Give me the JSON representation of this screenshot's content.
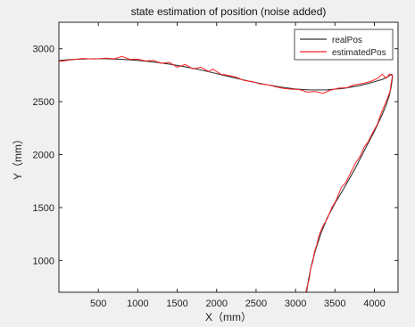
{
  "chart_data": {
    "type": "line",
    "title": "state estimation of position (noise added)",
    "xlabel": "X（mm）",
    "ylabel": "Y（mm）",
    "xlim": [
      0,
      4300
    ],
    "ylim": [
      700,
      3250
    ],
    "xticks": [
      500,
      1000,
      1500,
      2000,
      2500,
      3000,
      3500,
      4000
    ],
    "yticks": [
      1000,
      1500,
      2000,
      2500,
      3000
    ],
    "grid": false,
    "legend_position": "top-right",
    "series": [
      {
        "name": "realPos",
        "color": "#333333",
        "points": [
          [
            0,
            2890
          ],
          [
            200,
            2900
          ],
          [
            400,
            2905
          ],
          [
            600,
            2905
          ],
          [
            800,
            2900
          ],
          [
            1000,
            2890
          ],
          [
            1200,
            2875
          ],
          [
            1400,
            2855
          ],
          [
            1600,
            2830
          ],
          [
            1800,
            2800
          ],
          [
            2000,
            2765
          ],
          [
            2200,
            2730
          ],
          [
            2400,
            2695
          ],
          [
            2600,
            2665
          ],
          [
            2800,
            2640
          ],
          [
            3000,
            2620
          ],
          [
            3200,
            2610
          ],
          [
            3400,
            2612
          ],
          [
            3600,
            2625
          ],
          [
            3800,
            2650
          ],
          [
            3950,
            2678
          ],
          [
            4100,
            2710
          ],
          [
            4180,
            2740
          ],
          [
            4220,
            2760
          ],
          [
            4230,
            2735
          ],
          [
            4215,
            2650
          ],
          [
            4190,
            2560
          ],
          [
            4150,
            2470
          ],
          [
            4100,
            2380
          ],
          [
            4000,
            2220
          ],
          [
            3880,
            2050
          ],
          [
            3750,
            1860
          ],
          [
            3620,
            1690
          ],
          [
            3500,
            1540
          ],
          [
            3400,
            1400
          ],
          [
            3320,
            1250
          ],
          [
            3250,
            1090
          ],
          [
            3200,
            950
          ],
          [
            3165,
            820
          ],
          [
            3140,
            700
          ]
        ]
      },
      {
        "name": "estimatedPos",
        "color": "#ff2020",
        "points": [
          [
            0,
            2880
          ],
          [
            150,
            2895
          ],
          [
            300,
            2908
          ],
          [
            450,
            2903
          ],
          [
            600,
            2912
          ],
          [
            700,
            2905
          ],
          [
            800,
            2928
          ],
          [
            900,
            2900
          ],
          [
            1000,
            2902
          ],
          [
            1100,
            2885
          ],
          [
            1200,
            2890
          ],
          [
            1300,
            2862
          ],
          [
            1400,
            2872
          ],
          [
            1500,
            2825
          ],
          [
            1600,
            2852
          ],
          [
            1700,
            2810
          ],
          [
            1800,
            2825
          ],
          [
            1900,
            2785
          ],
          [
            1950,
            2808
          ],
          [
            2050,
            2760
          ],
          [
            2150,
            2748
          ],
          [
            2250,
            2732
          ],
          [
            2350,
            2700
          ],
          [
            2450,
            2690
          ],
          [
            2550,
            2668
          ],
          [
            2650,
            2660
          ],
          [
            2750,
            2640
          ],
          [
            2850,
            2625
          ],
          [
            2950,
            2618
          ],
          [
            3050,
            2615
          ],
          [
            3150,
            2590
          ],
          [
            3250,
            2595
          ],
          [
            3350,
            2580
          ],
          [
            3450,
            2610
          ],
          [
            3550,
            2628
          ],
          [
            3650,
            2632
          ],
          [
            3750,
            2660
          ],
          [
            3850,
            2672
          ],
          [
            3950,
            2690
          ],
          [
            4050,
            2725
          ],
          [
            4100,
            2760
          ],
          [
            4150,
            2720
          ],
          [
            4190,
            2760
          ],
          [
            4230,
            2745
          ],
          [
            4210,
            2660
          ],
          [
            4200,
            2600
          ],
          [
            4160,
            2520
          ],
          [
            4120,
            2450
          ],
          [
            4080,
            2380
          ],
          [
            4040,
            2290
          ],
          [
            3980,
            2210
          ],
          [
            3920,
            2120
          ],
          [
            3870,
            2070
          ],
          [
            3820,
            1985
          ],
          [
            3760,
            1920
          ],
          [
            3700,
            1830
          ],
          [
            3640,
            1740
          ],
          [
            3580,
            1690
          ],
          [
            3510,
            1560
          ],
          [
            3460,
            1500
          ],
          [
            3400,
            1390
          ],
          [
            3350,
            1330
          ],
          [
            3300,
            1240
          ],
          [
            3270,
            1150
          ],
          [
            3240,
            1080
          ],
          [
            3220,
            990
          ],
          [
            3190,
            920
          ],
          [
            3175,
            830
          ],
          [
            3150,
            760
          ],
          [
            3130,
            700
          ]
        ]
      }
    ]
  }
}
